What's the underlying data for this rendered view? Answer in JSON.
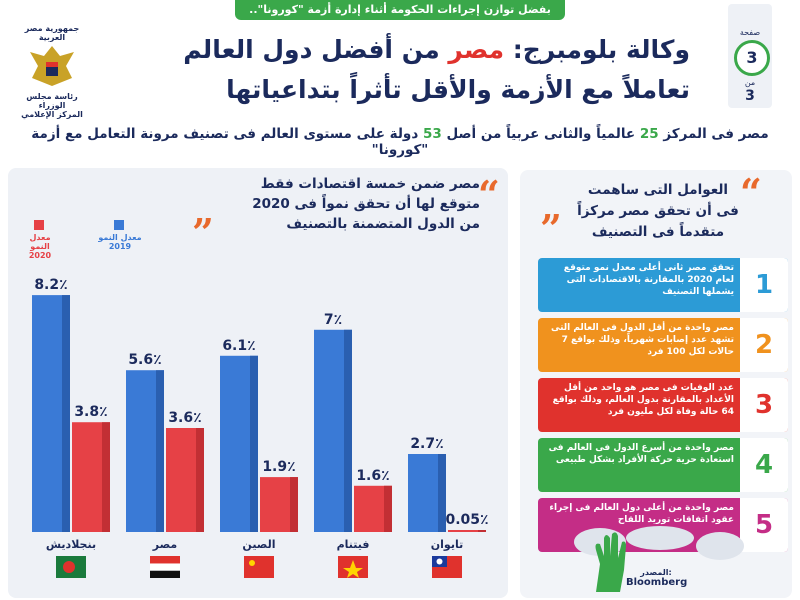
{
  "banner": "بفضل توازن إجراءات الحكومة أثناء إدارة أزمة \"كورونا\"..",
  "logo": {
    "line1": "جمهورية مصر العربية",
    "line2": "رئاسة مجلس الوزراء",
    "line3": "المركز الإعلامي"
  },
  "page": {
    "label": "صفحة",
    "number": "3",
    "of_label": "من",
    "total": "3"
  },
  "title": {
    "part1": "وكالة بلومبرج: ",
    "highlight": "مصر",
    "part2": " من أفضل دول العالم",
    "line2": "تعاملاً مع الأزمة والأقل تأثراً بتداعياتها"
  },
  "subtitle": {
    "p1": "مصر فى المركز ",
    "n1": "25",
    "p2": " عالمياً والثانى عربياً من أصل ",
    "n2": "53",
    "p3": " دولة على مستوى العالم فى تصنيف مرونة التعامل مع أزمة \"كورونا\""
  },
  "chart_header": {
    "line1": "مصر ضمن خمسة اقتصادات فقط",
    "line2": "متوقع لها أن تحقق نمواً فى 2020",
    "line3": "من الدول المتضمنة بالتصنيف"
  },
  "factors_header": {
    "line1": "العوامل التى ساهمت",
    "line2": "فى أن تحقق مصر مركزاً",
    "line3": "متقدماً فى التصنيف"
  },
  "factors": [
    {
      "num": "1",
      "color": "#2c9bd6",
      "text": "تحقق مصر ثانى أعلى معدل نمو متوقع لعام 2020 بالمقارنة بالاقتصادات التى يشملها التصنيف"
    },
    {
      "num": "2",
      "color": "#f0921e",
      "text": "مصر واحدة من أقل الدول فى العالم التى تشهد عدد إصابات شهرياً، وذلك بواقع 7 حالات لكل 100 فرد"
    },
    {
      "num": "3",
      "color": "#e0322d",
      "text": "عدد الوفيات فى مصر هو واحد من أقل الأعداد بالمقارنة بدول العالم، وذلك بواقع 64 حالة وفاة لكل مليون فرد"
    },
    {
      "num": "4",
      "color": "#3aa84a",
      "text": "مصر واحدة من أسرع الدول فى العالم فى استعادة حرية حركة الأفراد بشكل طبيعى"
    },
    {
      "num": "5",
      "color": "#c42d86",
      "text": "مصر واحدة من أعلى دول العالم فى إجراء عقود اتفاقات توريد اللقاح"
    }
  ],
  "source": {
    "label": "المصدر:",
    "name": "Bloomberg"
  },
  "colors": {
    "navy": "#1b2a5c",
    "blue": "#3a7ad6",
    "red": "#e64146",
    "green": "#3aa84a"
  },
  "chart_data": {
    "type": "bar",
    "categories": [
      "بنجلاديش",
      "مصر",
      "الصين",
      "فيتنام",
      "تايوان"
    ],
    "series": [
      {
        "name": "معدل النمو 2019",
        "values": [
          8.2,
          5.6,
          6.1,
          7,
          2.7
        ],
        "labels": [
          "8.2٪",
          "5.6٪",
          "6.1٪",
          "7٪",
          "2.7٪"
        ],
        "color": "#3a7ad6"
      },
      {
        "name": "معدل النمو 2020",
        "values": [
          3.8,
          3.6,
          1.9,
          1.6,
          0.05
        ],
        "labels": [
          "3.8٪",
          "3.6٪",
          "1.9٪",
          "1.6٪",
          "0.05٪"
        ],
        "color": "#e64146"
      }
    ],
    "ylim": [
      0,
      9
    ],
    "legend": "top-left",
    "grid": false
  }
}
